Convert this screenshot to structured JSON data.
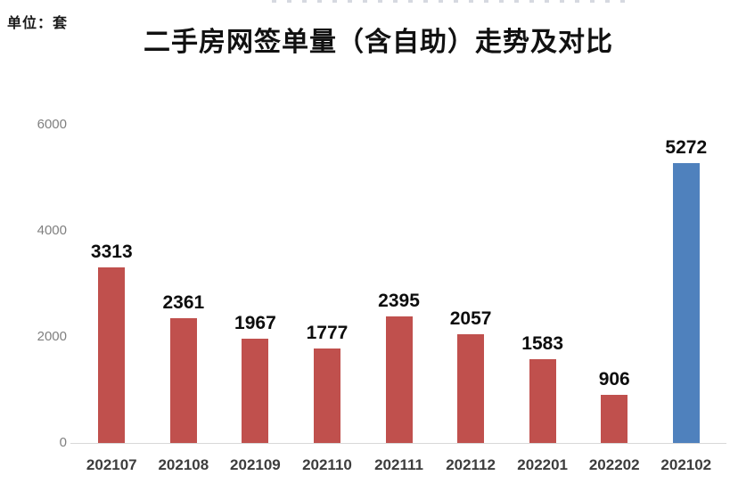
{
  "page": {
    "unit_label": "单位：套",
    "title": "二手房网签单量（含自助）走势及对比"
  },
  "chart_data": {
    "type": "bar",
    "title": "二手房网签单量（含自助）走势及对比",
    "unit": "套",
    "categories": [
      "202107",
      "202108",
      "202109",
      "202110",
      "202111",
      "202112",
      "202201",
      "202202",
      "202102"
    ],
    "values": [
      3313,
      2361,
      1967,
      1777,
      2395,
      2057,
      1583,
      906,
      5272
    ],
    "bar_colors": [
      "#c0504d",
      "#c0504d",
      "#c0504d",
      "#c0504d",
      "#c0504d",
      "#c0504d",
      "#c0504d",
      "#c0504d",
      "#4f81bd"
    ],
    "yticks": [
      0,
      2000,
      4000,
      6000
    ],
    "ylim": [
      0,
      6000
    ],
    "xlabel": "",
    "ylabel": "",
    "grid": false,
    "legend_position": "none",
    "data_labels": true
  },
  "colors": {
    "bar_red": "#c0504d",
    "bar_blue": "#4f81bd",
    "ytick_text": "#7f7f7f",
    "xtick_text": "#3d3d3d",
    "axis_line": "#d9d9d9",
    "value_label_text": "#0d0d0d"
  }
}
